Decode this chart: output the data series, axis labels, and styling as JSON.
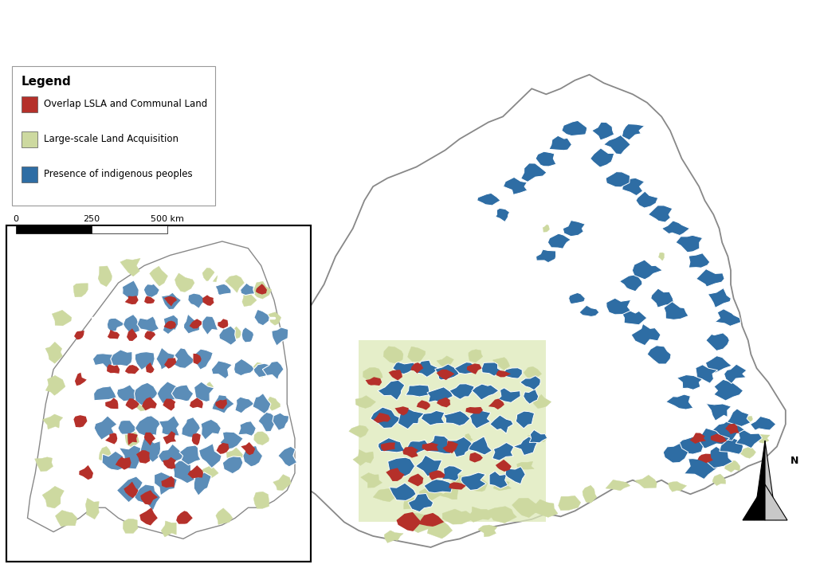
{
  "background_color": "#ffffff",
  "colors": {
    "overlap": "#b5302a",
    "lsla": "#cdd9a0",
    "lsla_light": "#dce8b8",
    "indigenous": "#2e6da4",
    "indigenous_inset": "#5b8db8",
    "border": "#888888",
    "border_light": "#aaaaaa",
    "white_border": "#ffffff",
    "highlight_box": "#dde9b8"
  },
  "legend": {
    "title": "Legend",
    "items": [
      {
        "label": "Overlap LSLA and Communal Land",
        "color": "#b5302a"
      },
      {
        "label": "Large-scale Land Acquisition",
        "color": "#cdd9a0"
      },
      {
        "label": "Presence of indigenous peoples",
        "color": "#2e6da4"
      }
    ]
  },
  "scalebar": {
    "labels": [
      "0",
      "250",
      "500 km"
    ]
  }
}
